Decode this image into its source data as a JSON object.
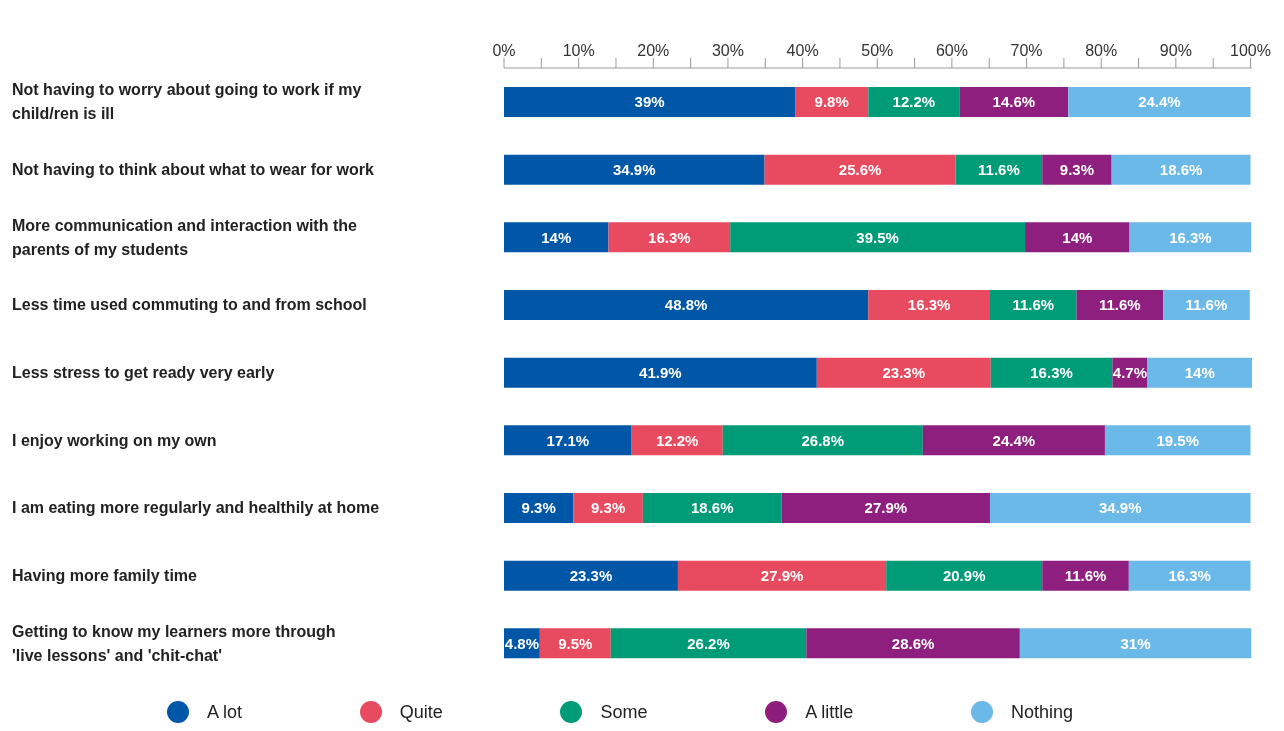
{
  "chart_data": {
    "type": "bar",
    "orientation": "horizontal",
    "stacked": true,
    "categories": [
      "Not having to worry about going to work if my child/ren is ill",
      "Not having to think about what to wear for work",
      "More communication and interaction with the parents of my students",
      "Less time used commuting to and from school",
      "Less stress to get ready very early",
      "I enjoy working on my own",
      "I am eating more regularly and healthily at home",
      "Having more family time",
      "Getting to know my learners more through 'live lessons' and 'chit-chat'"
    ],
    "series": [
      {
        "name": "A lot",
        "color": "#0057a8",
        "values": [
          39,
          34.9,
          14,
          48.8,
          41.9,
          17.1,
          9.3,
          23.3,
          4.8
        ],
        "value_labels": [
          "39%",
          "34.9%",
          "14%",
          "48.8%",
          "41.9%",
          "17.1%",
          "9.3%",
          "23.3%",
          "4.8%"
        ]
      },
      {
        "name": "Quite",
        "color": "#e84a5f",
        "values": [
          9.8,
          25.6,
          16.3,
          16.3,
          23.3,
          12.2,
          9.3,
          27.9,
          9.5
        ],
        "value_labels": [
          "9.8%",
          "25.6%",
          "16.3%",
          "16.3%",
          "23.3%",
          "12.2%",
          "9.3%",
          "27.9%",
          "9.5%"
        ]
      },
      {
        "name": "Some",
        "color": "#009b77",
        "values": [
          12.2,
          11.6,
          39.5,
          11.6,
          16.3,
          26.8,
          18.6,
          20.9,
          26.2
        ],
        "value_labels": [
          "12.2%",
          "11.6%",
          "39.5%",
          "11.6%",
          "16.3%",
          "26.8%",
          "18.6%",
          "20.9%",
          "26.2%"
        ]
      },
      {
        "name": "A little",
        "color": "#8e1f7e",
        "values": [
          14.6,
          9.3,
          14,
          11.6,
          4.7,
          24.4,
          27.9,
          11.6,
          28.6
        ],
        "value_labels": [
          "14.6%",
          "9.3%",
          "14%",
          "11.6%",
          "4.7%",
          "24.4%",
          "27.9%",
          "11.6%",
          "28.6%"
        ]
      },
      {
        "name": "Nothing",
        "color": "#6bb9e8",
        "values": [
          24.4,
          18.6,
          16.3,
          11.6,
          14,
          19.5,
          34.9,
          16.3,
          31
        ],
        "value_labels": [
          "24.4%",
          "18.6%",
          "16.3%",
          "11.6%",
          "14%",
          "19.5%",
          "34.9%",
          "16.3%",
          "31%"
        ]
      }
    ],
    "xlim": [
      0,
      100.2
    ],
    "xticks": [
      {
        "value": 0,
        "label": "0%"
      },
      {
        "value": 5,
        "label": null
      },
      {
        "value": 10,
        "label": "10%"
      },
      {
        "value": 15,
        "label": null
      },
      {
        "value": 20,
        "label": "20%"
      },
      {
        "value": 25,
        "label": null
      },
      {
        "value": 30,
        "label": "30%"
      },
      {
        "value": 35,
        "label": null
      },
      {
        "value": 40,
        "label": "40%"
      },
      {
        "value": 45,
        "label": null
      },
      {
        "value": 50,
        "label": "50%"
      },
      {
        "value": 55,
        "label": null
      },
      {
        "value": 60,
        "label": "60%"
      },
      {
        "value": 65,
        "label": null
      },
      {
        "value": 70,
        "label": "70%"
      },
      {
        "value": 75,
        "label": null
      },
      {
        "value": 80,
        "label": "80%"
      },
      {
        "value": 85,
        "label": null
      },
      {
        "value": 90,
        "label": "90%"
      },
      {
        "value": 95,
        "label": null
      },
      {
        "value": 100,
        "label": "100%"
      }
    ],
    "legend": "bottom"
  }
}
